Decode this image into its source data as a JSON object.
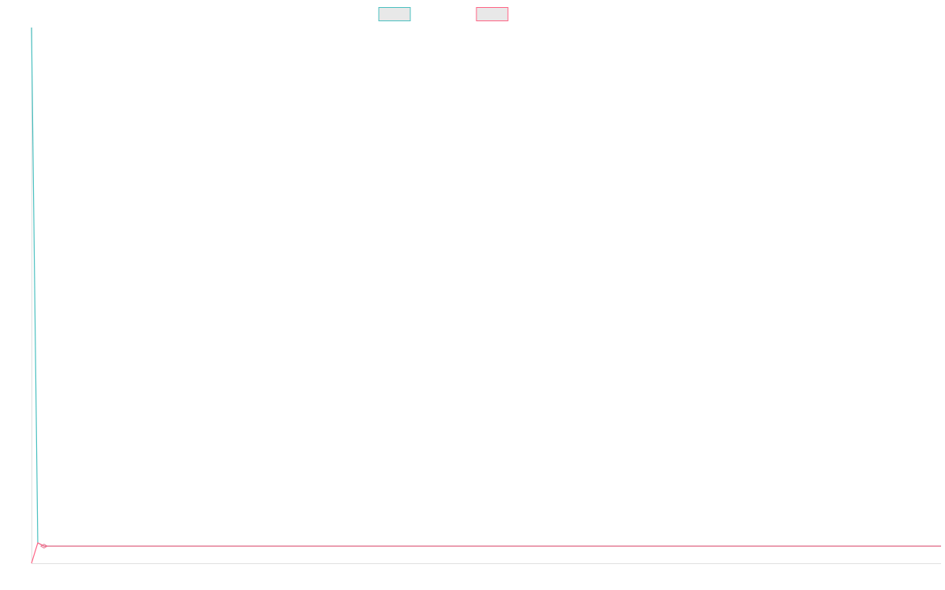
{
  "chart_data": {
    "type": "line",
    "x": [
      0,
      1,
      2,
      145
    ],
    "xlim": [
      0,
      145
    ],
    "ylim": [
      0,
      100
    ],
    "series": [
      {
        "color": "#4bc0c0",
        "values": [
          100,
          3.8,
          3.2,
          3.2
        ]
      },
      {
        "color": "#ff6384",
        "values": [
          0,
          3.8,
          3.2,
          3.2
        ]
      }
    ]
  }
}
